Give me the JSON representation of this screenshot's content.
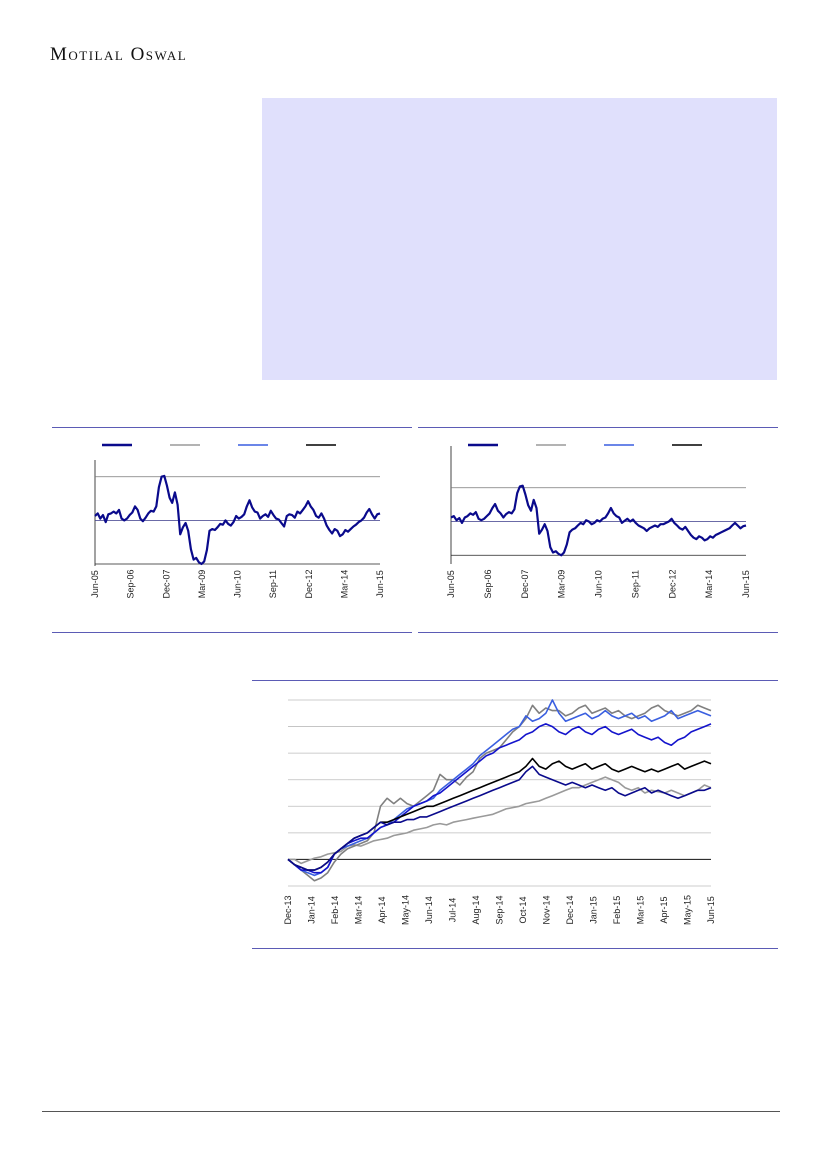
{
  "brand": {
    "name": "Motilal Oswal"
  },
  "colors": {
    "callout_bg": "#e0e0fc",
    "rule": "#5b5bb5",
    "footer_rule": "#555555",
    "series_navy": "#0a0a8c",
    "series_grey": "#9a9a9a",
    "series_blue": "#3a5fe0",
    "series_black": "#000000",
    "series_dark_grey": "#808080",
    "series_deep_blue": "#1414cc"
  },
  "chart_data": [
    {
      "type": "line",
      "title": "",
      "ylabel": "",
      "legend_placement": "top-left",
      "x_ticks": [
        "Jun-05",
        "Sep-06",
        "Dec-07",
        "Mar-09",
        "Jun-10",
        "Sep-11",
        "Dec-12",
        "Mar-14",
        "Jun-15"
      ],
      "reference_lines": [
        0.0,
        0.5,
        1.0
      ],
      "ylim": [
        0,
        1.1
      ],
      "series": [
        {
          "color": "#0a0a8c",
          "values": [
            0.55,
            0.58,
            0.52,
            0.56,
            0.48,
            0.57,
            0.58,
            0.6,
            0.58,
            0.62,
            0.52,
            0.5,
            0.52,
            0.56,
            0.59,
            0.66,
            0.62,
            0.52,
            0.49,
            0.53,
            0.58,
            0.61,
            0.6,
            0.66,
            0.88,
            1.0,
            1.01,
            0.9,
            0.76,
            0.7,
            0.82,
            0.68,
            0.34,
            0.42,
            0.47,
            0.38,
            0.17,
            0.05,
            0.07,
            0.02,
            0.0,
            0.03,
            0.16,
            0.38,
            0.4,
            0.39,
            0.42,
            0.46,
            0.45,
            0.5,
            0.46,
            0.44,
            0.48,
            0.55,
            0.52,
            0.54,
            0.57,
            0.66,
            0.73,
            0.65,
            0.6,
            0.59,
            0.52,
            0.55,
            0.57,
            0.54,
            0.61,
            0.56,
            0.52,
            0.51,
            0.47,
            0.43,
            0.55,
            0.57,
            0.56,
            0.53,
            0.6,
            0.58,
            0.62,
            0.66,
            0.72,
            0.66,
            0.62,
            0.55,
            0.53,
            0.58,
            0.52,
            0.44,
            0.39,
            0.35,
            0.4,
            0.38,
            0.32,
            0.34,
            0.39,
            0.37,
            0.4,
            0.43,
            0.45,
            0.48,
            0.5,
            0.53,
            0.59,
            0.63,
            0.57,
            0.52,
            0.57,
            0.58
          ]
        }
      ]
    },
    {
      "type": "line",
      "title": "",
      "ylabel": "",
      "legend_placement": "top-left",
      "x_ticks": [
        "Jun-05",
        "Sep-06",
        "Dec-07",
        "Mar-09",
        "Jun-10",
        "Sep-11",
        "Dec-12",
        "Mar-14",
        "Jun-15"
      ],
      "reference_lines": [
        0.0,
        0.5,
        1.0
      ],
      "ylim": [
        -0.1,
        1.5
      ],
      "series": [
        {
          "color": "#0a0a8c",
          "values": [
            0.56,
            0.58,
            0.52,
            0.55,
            0.48,
            0.56,
            0.58,
            0.62,
            0.6,
            0.64,
            0.54,
            0.52,
            0.54,
            0.58,
            0.62,
            0.7,
            0.76,
            0.66,
            0.62,
            0.56,
            0.61,
            0.64,
            0.62,
            0.68,
            0.92,
            1.02,
            1.03,
            0.9,
            0.74,
            0.66,
            0.82,
            0.7,
            0.32,
            0.38,
            0.46,
            0.36,
            0.12,
            0.04,
            0.06,
            0.02,
            0.0,
            0.04,
            0.16,
            0.34,
            0.38,
            0.4,
            0.44,
            0.48,
            0.46,
            0.52,
            0.5,
            0.46,
            0.48,
            0.52,
            0.5,
            0.54,
            0.56,
            0.62,
            0.7,
            0.62,
            0.58,
            0.56,
            0.48,
            0.51,
            0.54,
            0.5,
            0.53,
            0.48,
            0.44,
            0.42,
            0.4,
            0.36,
            0.4,
            0.42,
            0.44,
            0.42,
            0.46,
            0.46,
            0.48,
            0.5,
            0.54,
            0.48,
            0.44,
            0.4,
            0.38,
            0.42,
            0.36,
            0.3,
            0.26,
            0.24,
            0.28,
            0.26,
            0.22,
            0.24,
            0.28,
            0.26,
            0.3,
            0.32,
            0.34,
            0.36,
            0.38,
            0.4,
            0.44,
            0.48,
            0.44,
            0.4,
            0.43,
            0.44
          ]
        }
      ]
    },
    {
      "type": "line",
      "title": "",
      "ylabel": "",
      "x_ticks": [
        "Dec-13",
        "Jan-14",
        "Feb-14",
        "Mar-14",
        "Apr-14",
        "May-14",
        "Jun-14",
        "Jul-14",
        "Aug-14",
        "Sep-14",
        "Oct-14",
        "Nov-14",
        "Dec-14",
        "Jan-15",
        "Feb-15",
        "Mar-15",
        "Apr-15",
        "May-15",
        "Jun-15"
      ],
      "reference_line": 0,
      "ylim": [
        -1,
        6
      ],
      "series": [
        {
          "color": "#9a9a9a",
          "values": [
            0.0,
            0.0,
            -0.15,
            -0.05,
            0.05,
            0.1,
            0.2,
            0.25,
            0.3,
            0.5,
            0.55,
            0.5,
            0.6,
            0.7,
            0.75,
            0.8,
            0.9,
            0.95,
            1.0,
            1.1,
            1.15,
            1.2,
            1.3,
            1.35,
            1.3,
            1.4,
            1.45,
            1.5,
            1.55,
            1.6,
            1.65,
            1.7,
            1.8,
            1.9,
            1.95,
            2.0,
            2.1,
            2.15,
            2.2,
            2.3,
            2.4,
            2.5,
            2.6,
            2.7,
            2.7,
            2.8,
            2.9,
            3.0,
            3.1,
            3.0,
            2.9,
            2.7,
            2.6,
            2.7,
            2.5,
            2.6,
            2.55,
            2.5,
            2.6,
            2.5,
            2.4,
            2.5,
            2.6,
            2.8,
            2.7
          ]
        },
        {
          "color": "#808080",
          "values": [
            0.0,
            -0.2,
            -0.4,
            -0.6,
            -0.8,
            -0.7,
            -0.5,
            -0.1,
            0.2,
            0.4,
            0.5,
            0.6,
            0.7,
            1.0,
            2.0,
            2.3,
            2.1,
            2.3,
            2.1,
            2.0,
            2.2,
            2.4,
            2.6,
            3.2,
            3.0,
            3.0,
            2.8,
            3.1,
            3.3,
            3.8,
            4.0,
            4.1,
            4.2,
            4.5,
            4.8,
            5.0,
            5.3,
            5.8,
            5.5,
            5.7,
            5.6,
            5.6,
            5.4,
            5.5,
            5.7,
            5.8,
            5.5,
            5.6,
            5.7,
            5.5,
            5.6,
            5.4,
            5.3,
            5.4,
            5.5,
            5.7,
            5.8,
            5.6,
            5.5,
            5.4,
            5.5,
            5.6,
            5.8,
            5.7,
            5.6
          ]
        },
        {
          "color": "#3a5fe0",
          "values": [
            0.0,
            -0.2,
            -0.4,
            -0.5,
            -0.6,
            -0.5,
            -0.3,
            0.2,
            0.4,
            0.5,
            0.6,
            0.7,
            0.8,
            1.0,
            1.2,
            1.3,
            1.5,
            1.7,
            1.9,
            2.0,
            2.1,
            2.2,
            2.3,
            2.6,
            2.8,
            3.0,
            3.2,
            3.4,
            3.6,
            3.9,
            4.1,
            4.3,
            4.5,
            4.7,
            4.9,
            5.0,
            5.4,
            5.2,
            5.3,
            5.5,
            6.0,
            5.5,
            5.2,
            5.3,
            5.4,
            5.5,
            5.3,
            5.4,
            5.6,
            5.4,
            5.3,
            5.4,
            5.5,
            5.3,
            5.4,
            5.2,
            5.3,
            5.4,
            5.6,
            5.3,
            5.4,
            5.5,
            5.6,
            5.5,
            5.4
          ]
        },
        {
          "color": "#1414cc",
          "values": [
            0.0,
            -0.2,
            -0.4,
            -0.4,
            -0.5,
            -0.5,
            -0.3,
            0.2,
            0.4,
            0.6,
            0.7,
            0.8,
            0.8,
            1.0,
            1.2,
            1.3,
            1.4,
            1.6,
            1.8,
            2.0,
            2.1,
            2.2,
            2.4,
            2.5,
            2.7,
            2.9,
            3.1,
            3.3,
            3.5,
            3.7,
            3.9,
            4.0,
            4.2,
            4.3,
            4.4,
            4.5,
            4.7,
            4.8,
            5.0,
            5.1,
            5.0,
            4.8,
            4.7,
            4.9,
            5.0,
            4.8,
            4.7,
            4.9,
            5.0,
            4.8,
            4.7,
            4.8,
            4.9,
            4.7,
            4.6,
            4.5,
            4.6,
            4.4,
            4.3,
            4.5,
            4.6,
            4.8,
            4.9,
            5.0,
            5.1
          ]
        },
        {
          "color": "#000000",
          "values": [
            0.0,
            -0.2,
            -0.3,
            -0.4,
            -0.4,
            -0.3,
            -0.1,
            0.2,
            0.4,
            0.6,
            0.8,
            0.9,
            1.0,
            1.2,
            1.4,
            1.4,
            1.5,
            1.6,
            1.7,
            1.8,
            1.9,
            2.0,
            2.0,
            2.1,
            2.2,
            2.3,
            2.4,
            2.5,
            2.6,
            2.7,
            2.8,
            2.9,
            3.0,
            3.1,
            3.2,
            3.3,
            3.5,
            3.8,
            3.5,
            3.4,
            3.6,
            3.7,
            3.5,
            3.4,
            3.5,
            3.6,
            3.4,
            3.5,
            3.6,
            3.4,
            3.3,
            3.4,
            3.5,
            3.4,
            3.3,
            3.4,
            3.3,
            3.4,
            3.5,
            3.6,
            3.4,
            3.5,
            3.6,
            3.7,
            3.6
          ]
        },
        {
          "color": "#0a0a8c",
          "values": [
            0.0,
            -0.2,
            -0.3,
            -0.4,
            -0.4,
            -0.3,
            -0.1,
            0.2,
            0.4,
            0.6,
            0.8,
            0.9,
            1.0,
            1.2,
            1.4,
            1.3,
            1.4,
            1.4,
            1.5,
            1.5,
            1.6,
            1.6,
            1.7,
            1.8,
            1.9,
            2.0,
            2.1,
            2.2,
            2.3,
            2.4,
            2.5,
            2.6,
            2.7,
            2.8,
            2.9,
            3.0,
            3.3,
            3.5,
            3.2,
            3.1,
            3.0,
            2.9,
            2.8,
            2.9,
            2.8,
            2.7,
            2.8,
            2.7,
            2.6,
            2.7,
            2.5,
            2.4,
            2.5,
            2.6,
            2.7,
            2.5,
            2.6,
            2.5,
            2.4,
            2.3,
            2.4,
            2.5,
            2.6,
            2.6,
            2.7
          ]
        }
      ]
    }
  ]
}
